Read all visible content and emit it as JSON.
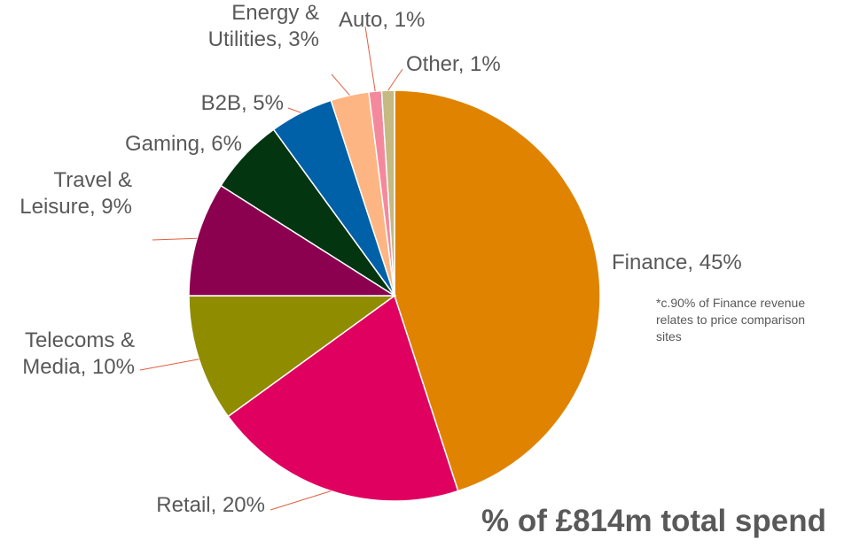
{
  "chart_data": {
    "type": "pie",
    "title": "",
    "slices": [
      {
        "name": "Finance",
        "value": 45,
        "label": [
          "Finance, 45%"
        ],
        "color": "#E08300"
      },
      {
        "name": "Retail",
        "value": 20,
        "label": [
          "Retail, 20%"
        ],
        "color": "#E00060"
      },
      {
        "name": "Telecoms & Media",
        "value": 10,
        "label": [
          "Telecoms &",
          "Media, 10%"
        ],
        "color": "#8F8C00"
      },
      {
        "name": "Travel & Leisure",
        "value": 9,
        "label": [
          "Travel &",
          "Leisure, 9%"
        ],
        "color": "#8C0050"
      },
      {
        "name": "Gaming",
        "value": 6,
        "label": [
          "Gaming, 6%"
        ],
        "color": "#023510"
      },
      {
        "name": "B2B",
        "value": 5,
        "label": [
          "B2B, 5%"
        ],
        "color": "#0060A8"
      },
      {
        "name": "Energy & Utilities",
        "value": 3,
        "label": [
          "Energy &",
          "Utilities, 3%"
        ],
        "color": "#FDB683"
      },
      {
        "name": "Auto",
        "value": 1,
        "label": [
          "Auto, 1%"
        ],
        "color": "#F4899E"
      },
      {
        "name": "Other",
        "value": 1,
        "label": [
          "Other, 1%"
        ],
        "color": "#C4BA82"
      }
    ],
    "label_color": "#595959",
    "leader_line_color": "#E06040",
    "start_angle": "12 o'clock",
    "direction": "clockwise"
  },
  "footnote": "*c.90% of Finance revenue relates to price comparison sites",
  "total_caption": "% of £814m total spend"
}
